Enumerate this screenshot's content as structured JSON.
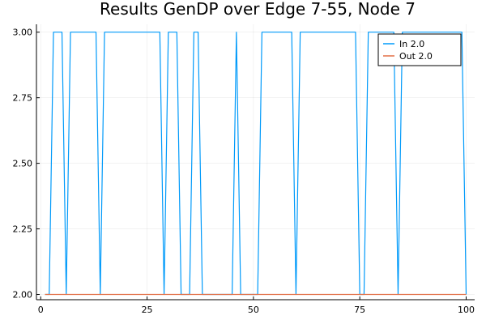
{
  "chart_data": {
    "type": "line",
    "title": "Results GenDP over Edge 7-55, Node 7",
    "xlabel": "",
    "ylabel": "",
    "xlim": [
      -1,
      102
    ],
    "ylim": [
      1.98,
      3.03
    ],
    "xticks": [
      0,
      25,
      50,
      75,
      100
    ],
    "yticks": [
      2.0,
      2.25,
      2.5,
      2.75,
      3.0
    ],
    "xtick_labels": [
      "0",
      "25",
      "50",
      "75",
      "100"
    ],
    "ytick_labels": [
      "2.00",
      "2.25",
      "2.50",
      "2.75",
      "3.00"
    ],
    "grid": true,
    "legend_position": "top-right",
    "series": [
      {
        "name": "In 2.0",
        "color": "#009AFA",
        "x": [
          1,
          2,
          3,
          4,
          5,
          6,
          7,
          8,
          9,
          10,
          11,
          12,
          13,
          14,
          15,
          16,
          17,
          18,
          19,
          20,
          21,
          22,
          23,
          24,
          25,
          26,
          27,
          28,
          29,
          30,
          31,
          32,
          33,
          34,
          35,
          36,
          37,
          38,
          39,
          40,
          41,
          42,
          43,
          44,
          45,
          46,
          47,
          48,
          49,
          50,
          51,
          52,
          53,
          54,
          55,
          56,
          57,
          58,
          59,
          60,
          61,
          62,
          63,
          64,
          65,
          66,
          67,
          68,
          69,
          70,
          71,
          72,
          73,
          74,
          75,
          76,
          77,
          78,
          79,
          80,
          81,
          82,
          83,
          84,
          85,
          86,
          87,
          88,
          89,
          90,
          91,
          92,
          93,
          94,
          95,
          96,
          97,
          98,
          99,
          100
        ],
        "values": [
          2,
          2,
          3,
          3,
          3,
          2,
          3,
          3,
          3,
          3,
          3,
          3,
          3,
          2,
          3,
          3,
          3,
          3,
          3,
          3,
          3,
          3,
          3,
          3,
          3,
          3,
          3,
          3,
          2,
          3,
          3,
          3,
          2,
          2,
          2,
          3,
          3,
          2,
          2,
          2,
          2,
          2,
          2,
          2,
          2,
          3,
          2,
          2,
          2,
          2,
          2,
          3,
          3,
          3,
          3,
          3,
          3,
          3,
          3,
          2,
          3,
          3,
          3,
          3,
          3,
          3,
          3,
          3,
          3,
          3,
          3,
          3,
          3,
          3,
          2,
          2,
          3,
          3,
          3,
          3,
          3,
          3,
          3,
          2,
          3,
          3,
          3,
          3,
          3,
          3,
          3,
          3,
          3,
          3,
          3,
          3,
          3,
          3,
          3,
          2
        ]
      },
      {
        "name": "Out 2.0",
        "color": "#E26F46",
        "x": [
          1,
          100
        ],
        "values": [
          2,
          2
        ]
      }
    ]
  }
}
